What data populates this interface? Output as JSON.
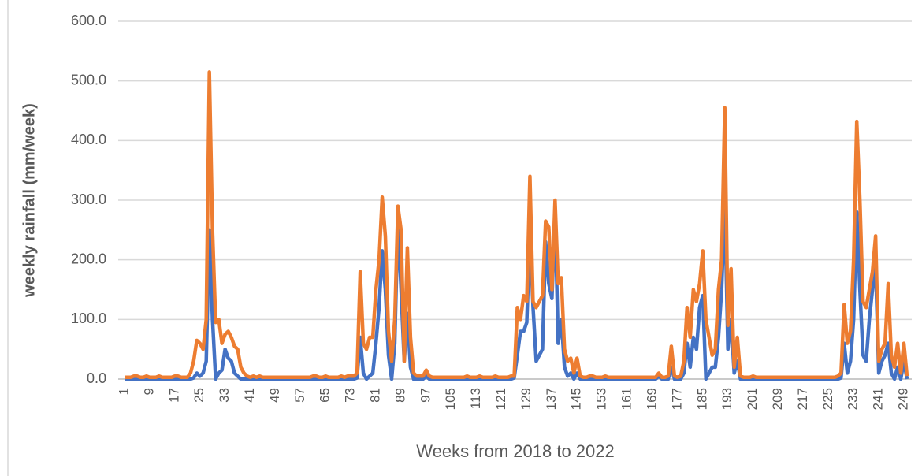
{
  "chart_data": {
    "type": "line",
    "y_label": "weekly rainfall (mm/week)",
    "x_label": "Weeks from 2018 to 2022",
    "categories": [
      "1",
      null,
      null,
      null,
      null,
      null,
      null,
      null,
      "9",
      null,
      null,
      null,
      null,
      null,
      null,
      null,
      "17",
      null,
      null,
      null,
      null,
      null,
      null,
      null,
      "25",
      null,
      null,
      null,
      null,
      null,
      null,
      null,
      "33",
      null,
      null,
      null,
      null,
      null,
      null,
      null,
      "41",
      null,
      null,
      null,
      null,
      null,
      null,
      null,
      "49",
      null,
      null,
      null,
      null,
      null,
      null,
      null,
      "57",
      null,
      null,
      null,
      null,
      null,
      null,
      null,
      "65",
      null,
      null,
      null,
      null,
      null,
      null,
      null,
      "73",
      null,
      null,
      null,
      null,
      null,
      null,
      null,
      "81",
      null,
      null,
      null,
      null,
      null,
      null,
      null,
      "89",
      null,
      null,
      null,
      null,
      null,
      null,
      null,
      "97",
      null,
      null,
      null,
      null,
      null,
      null,
      null,
      "105",
      null,
      null,
      null,
      null,
      null,
      null,
      null,
      "113",
      null,
      null,
      null,
      null,
      null,
      null,
      null,
      "121",
      null,
      null,
      null,
      null,
      null,
      null,
      null,
      "129",
      null,
      null,
      null,
      null,
      null,
      null,
      null,
      "137",
      null,
      null,
      null,
      null,
      null,
      null,
      null,
      "145",
      null,
      null,
      null,
      null,
      null,
      null,
      null,
      "153",
      null,
      null,
      null,
      null,
      null,
      null,
      null,
      "161",
      null,
      null,
      null,
      null,
      null,
      null,
      null,
      "169",
      null,
      null,
      null,
      null,
      null,
      null,
      null,
      "177",
      null,
      null,
      null,
      null,
      null,
      null,
      null,
      "185",
      null,
      null,
      null,
      null,
      null,
      null,
      null,
      "193",
      null,
      null,
      null,
      null,
      null,
      null,
      null,
      "201",
      null,
      null,
      null,
      null,
      null,
      null,
      null,
      "209",
      null,
      null,
      null,
      null,
      null,
      null,
      null,
      "217",
      null,
      null,
      null,
      null,
      null,
      null,
      null,
      "225",
      null,
      null,
      null,
      null,
      null,
      null,
      null,
      "233",
      null,
      null,
      null,
      null,
      null,
      null,
      null,
      "241",
      null,
      null,
      null,
      null,
      null,
      null,
      null,
      "249",
      null
    ],
    "series": [
      {
        "color": "#4472c4",
        "values": [
          0,
          0,
          0,
          0,
          0,
          0,
          0,
          0,
          0,
          0,
          0,
          0,
          0,
          0,
          0,
          0,
          0,
          0,
          0,
          0,
          0,
          0,
          2,
          10,
          5,
          10,
          30,
          250,
          100,
          0,
          10,
          15,
          50,
          35,
          30,
          10,
          5,
          0,
          0,
          0,
          0,
          0,
          0,
          0,
          0,
          0,
          0,
          0,
          0,
          0,
          0,
          0,
          0,
          0,
          0,
          0,
          0,
          0,
          0,
          0,
          0,
          0,
          0,
          0,
          0,
          0,
          0,
          0,
          0,
          0,
          0,
          0,
          0,
          0,
          2,
          70,
          10,
          0,
          5,
          10,
          60,
          120,
          215,
          150,
          40,
          0,
          60,
          270,
          150,
          30,
          110,
          20,
          0,
          0,
          0,
          0,
          5,
          0,
          0,
          0,
          0,
          0,
          0,
          0,
          0,
          0,
          0,
          0,
          0,
          0,
          0,
          0,
          0,
          0,
          0,
          0,
          0,
          0,
          0,
          0,
          0,
          0,
          0,
          0,
          2,
          40,
          80,
          80,
          95,
          250,
          120,
          30,
          40,
          50,
          230,
          160,
          135,
          280,
          60,
          100,
          20,
          5,
          10,
          0,
          10,
          0,
          0,
          0,
          0,
          0,
          0,
          0,
          0,
          0,
          0,
          0,
          0,
          0,
          0,
          0,
          0,
          0,
          0,
          0,
          0,
          0,
          0,
          0,
          0,
          0,
          5,
          0,
          0,
          0,
          20,
          0,
          0,
          0,
          10,
          60,
          20,
          70,
          50,
          120,
          140,
          0,
          10,
          20,
          20,
          70,
          150,
          300,
          50,
          100,
          10,
          30,
          0,
          0,
          0,
          0,
          0,
          0,
          0,
          0,
          0,
          0,
          0,
          0,
          0,
          0,
          0,
          0,
          0,
          0,
          0,
          0,
          0,
          0,
          0,
          0,
          0,
          0,
          0,
          0,
          0,
          0,
          0,
          0,
          2,
          60,
          10,
          30,
          100,
          280,
          150,
          40,
          30,
          100,
          150,
          190,
          10,
          30,
          40,
          60,
          10,
          0,
          20,
          0,
          30,
          0
        ]
      },
      {
        "color": "#ed7d31",
        "values": [
          3,
          3,
          3,
          5,
          5,
          3,
          3,
          5,
          3,
          3,
          3,
          5,
          3,
          3,
          3,
          3,
          5,
          5,
          3,
          3,
          3,
          10,
          30,
          65,
          60,
          50,
          100,
          515,
          250,
          95,
          100,
          60,
          75,
          80,
          70,
          55,
          50,
          20,
          10,
          5,
          3,
          5,
          3,
          5,
          3,
          3,
          3,
          3,
          3,
          3,
          3,
          3,
          3,
          3,
          3,
          3,
          3,
          3,
          3,
          3,
          5,
          5,
          3,
          3,
          5,
          3,
          3,
          3,
          3,
          5,
          3,
          5,
          5,
          5,
          10,
          180,
          60,
          50,
          70,
          70,
          150,
          200,
          305,
          240,
          80,
          30,
          100,
          290,
          250,
          30,
          220,
          70,
          10,
          5,
          5,
          5,
          15,
          5,
          3,
          3,
          3,
          3,
          3,
          3,
          3,
          3,
          3,
          3,
          3,
          5,
          3,
          3,
          3,
          5,
          3,
          3,
          3,
          3,
          5,
          3,
          3,
          3,
          3,
          5,
          5,
          120,
          100,
          140,
          130,
          340,
          130,
          120,
          130,
          140,
          265,
          255,
          150,
          300,
          160,
          170,
          50,
          30,
          35,
          10,
          35,
          5,
          3,
          3,
          5,
          5,
          3,
          3,
          3,
          5,
          3,
          3,
          3,
          3,
          3,
          3,
          3,
          3,
          3,
          3,
          3,
          3,
          3,
          3,
          3,
          3,
          10,
          3,
          3,
          5,
          55,
          5,
          3,
          5,
          30,
          120,
          70,
          150,
          130,
          160,
          215,
          100,
          70,
          40,
          50,
          150,
          200,
          455,
          90,
          185,
          20,
          70,
          5,
          3,
          3,
          3,
          5,
          3,
          3,
          3,
          3,
          3,
          3,
          3,
          3,
          3,
          3,
          3,
          3,
          3,
          3,
          3,
          3,
          3,
          3,
          3,
          3,
          3,
          3,
          3,
          3,
          3,
          3,
          5,
          10,
          125,
          60,
          80,
          200,
          432,
          300,
          130,
          120,
          150,
          180,
          240,
          30,
          50,
          60,
          160,
          40,
          20,
          60,
          10,
          60,
          5
        ]
      }
    ],
    "ylim": [
      0,
      600
    ],
    "yticks": [
      {
        "value": 0,
        "label": "0.0"
      },
      {
        "value": 100,
        "label": "100.0"
      },
      {
        "value": 200,
        "label": "200.0"
      },
      {
        "value": 300,
        "label": "300.0"
      },
      {
        "value": 400,
        "label": "400.0"
      },
      {
        "value": 500,
        "label": "500.0"
      },
      {
        "value": 600,
        "label": "600.0"
      }
    ],
    "grid": true
  }
}
